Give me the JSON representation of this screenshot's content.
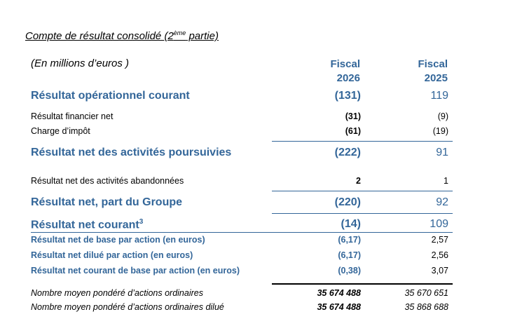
{
  "title": {
    "main": "Compte de résultat consolidé (2",
    "sup": "ème",
    "end": " partie)"
  },
  "unit": "(En millions d’euros )",
  "columns": [
    {
      "line1": "Fiscal",
      "line2": "2026"
    },
    {
      "line1": "Fiscal",
      "line2": "2025"
    }
  ],
  "rows": [
    {
      "label": "Résultat opérationnel courant",
      "v1": "(131)",
      "v2": "119"
    },
    {
      "label": "Résultat financier net",
      "v1": "(31)",
      "v2": "(9)"
    },
    {
      "label": "Charge d’impôt",
      "v1": "(61)",
      "v2": "(19)"
    },
    {
      "label": "Résultat net des activités poursuivies",
      "v1": "(222)",
      "v2": "91"
    },
    {
      "label": "Résultat net des activités abandonnées",
      "v1": "2",
      "v2": "1"
    },
    {
      "label": "Résultat net, part du Groupe",
      "v1": "(220)",
      "v2": "92"
    },
    {
      "label": "Résultat net courant",
      "sup": "3",
      "v1": "(14)",
      "v2": "109"
    },
    {
      "label": "Résultat net de base par action (en euros)",
      "v1": "(6,17)",
      "v2": "2,57"
    },
    {
      "label": "Résultat net dilué par action (en euros)",
      "v1": "(6,17)",
      "v2": "2,56"
    },
    {
      "label": "Résultat net courant de base par action (en euros)",
      "v1": "(0,38)",
      "v2": "3,07"
    },
    {
      "label": "Nombre moyen pondéré d’actions ordinaires",
      "v1": "35 674 488",
      "v2": "35 670 651"
    },
    {
      "label": "Nombre moyen pondéré d’actions ordinaires dilué",
      "v1": "35 674 488",
      "v2": "35 868 688"
    }
  ],
  "colors": {
    "accent": "#336699",
    "text": "#000000"
  }
}
